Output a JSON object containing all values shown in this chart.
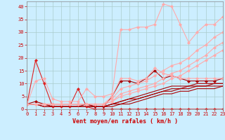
{
  "bg_color": "#cceeff",
  "grid_color": "#aacccc",
  "xlabel": "Vent moyen/en rafales ( km/h )",
  "xlim": [
    0,
    23
  ],
  "ylim": [
    0,
    42
  ],
  "xticks": [
    0,
    1,
    2,
    3,
    4,
    5,
    6,
    7,
    8,
    9,
    10,
    11,
    12,
    13,
    14,
    15,
    16,
    17,
    18,
    19,
    20,
    21,
    22,
    23
  ],
  "yticks": [
    0,
    5,
    10,
    15,
    20,
    25,
    30,
    35,
    40
  ],
  "series": [
    {
      "x": [
        0,
        1,
        2,
        3,
        4,
        5,
        6,
        7,
        8,
        9,
        10,
        11,
        12,
        13,
        14,
        15,
        16,
        17,
        18,
        19,
        20,
        21,
        22,
        23
      ],
      "y": [
        2,
        19,
        10,
        1,
        1,
        1,
        8,
        1,
        0,
        0,
        0,
        0,
        0,
        0,
        0,
        0,
        0,
        0,
        0,
        0,
        0,
        0,
        0,
        0
      ],
      "color": "#dd2222",
      "lw": 0.8,
      "marker": "D",
      "ms": 2
    },
    {
      "x": [
        0,
        1,
        2,
        3,
        4,
        5,
        6,
        7,
        8,
        9,
        10,
        11,
        12,
        13,
        14,
        15,
        16,
        17,
        18,
        19,
        20,
        21,
        22,
        23
      ],
      "y": [
        2,
        3,
        2,
        2,
        2,
        2,
        2,
        2,
        1,
        1,
        5,
        11,
        11,
        10,
        12,
        15,
        12,
        13,
        12,
        11,
        11,
        11,
        11,
        12
      ],
      "color": "#aa0000",
      "lw": 0.8,
      "marker": "D",
      "ms": 2
    },
    {
      "x": [
        0,
        1,
        2,
        3,
        4,
        5,
        6,
        7,
        8,
        9,
        10,
        11,
        12,
        13,
        14,
        15,
        16,
        17,
        18,
        19,
        20,
        21,
        22,
        23
      ],
      "y": [
        2,
        2,
        2,
        1,
        1,
        1,
        1,
        2,
        1,
        1,
        2,
        3,
        4,
        5,
        6,
        7,
        8,
        9,
        9,
        9,
        10,
        10,
        10,
        10
      ],
      "color": "#aa0000",
      "lw": 0.8,
      "marker": null,
      "ms": 0
    },
    {
      "x": [
        0,
        1,
        2,
        3,
        4,
        5,
        6,
        7,
        8,
        9,
        10,
        11,
        12,
        13,
        14,
        15,
        16,
        17,
        18,
        19,
        20,
        21,
        22,
        23
      ],
      "y": [
        2,
        2,
        2,
        1,
        1,
        1,
        1,
        1,
        1,
        1,
        2,
        3,
        4,
        4,
        5,
        6,
        7,
        8,
        8,
        9,
        9,
        9,
        10,
        10
      ],
      "color": "#aa0000",
      "lw": 0.8,
      "marker": null,
      "ms": 0
    },
    {
      "x": [
        0,
        1,
        2,
        3,
        4,
        5,
        6,
        7,
        8,
        9,
        10,
        11,
        12,
        13,
        14,
        15,
        16,
        17,
        18,
        19,
        20,
        21,
        22,
        23
      ],
      "y": [
        2,
        2,
        1,
        1,
        1,
        1,
        1,
        1,
        1,
        1,
        2,
        2,
        3,
        4,
        5,
        6,
        7,
        7,
        8,
        8,
        9,
        9,
        9,
        9
      ],
      "color": "#aa0000",
      "lw": 0.8,
      "marker": null,
      "ms": 0
    },
    {
      "x": [
        0,
        1,
        2,
        3,
        4,
        5,
        6,
        7,
        8,
        9,
        10,
        11,
        12,
        13,
        14,
        15,
        16,
        17,
        18,
        19,
        20,
        21,
        22,
        23
      ],
      "y": [
        2,
        2,
        1,
        1,
        1,
        1,
        1,
        1,
        1,
        1,
        1,
        2,
        2,
        3,
        4,
        5,
        6,
        6,
        7,
        7,
        8,
        8,
        8,
        9
      ],
      "color": "#aa0000",
      "lw": 0.8,
      "marker": null,
      "ms": 0
    },
    {
      "x": [
        0,
        1,
        2,
        3,
        4,
        5,
        6,
        7,
        8,
        9,
        10,
        11,
        12,
        13,
        14,
        15,
        16,
        17,
        18,
        19,
        20,
        21,
        22,
        23
      ],
      "y": [
        2,
        11,
        12,
        4,
        3,
        3,
        3,
        8,
        5,
        5,
        6,
        31,
        31,
        32,
        32,
        33,
        41,
        40,
        33,
        26,
        30,
        33,
        33,
        36
      ],
      "color": "#ffaaaa",
      "lw": 0.8,
      "marker": "D",
      "ms": 2
    },
    {
      "x": [
        0,
        1,
        2,
        3,
        4,
        5,
        6,
        7,
        8,
        9,
        10,
        11,
        12,
        13,
        14,
        15,
        16,
        17,
        18,
        19,
        20,
        21,
        22,
        23
      ],
      "y": [
        2,
        2,
        2,
        2,
        2,
        2,
        2,
        2,
        2,
        2,
        5,
        12,
        12,
        11,
        12,
        16,
        14,
        13,
        12,
        12,
        12,
        12,
        12,
        12
      ],
      "color": "#ffaaaa",
      "lw": 0.8,
      "marker": "D",
      "ms": 2
    },
    {
      "x": [
        0,
        1,
        2,
        3,
        4,
        5,
        6,
        7,
        8,
        9,
        10,
        11,
        12,
        13,
        14,
        15,
        16,
        17,
        18,
        19,
        20,
        21,
        22,
        23
      ],
      "y": [
        2,
        2,
        2,
        2,
        2,
        2,
        2,
        2,
        2,
        2,
        4,
        8,
        9,
        10,
        11,
        13,
        15,
        17,
        18,
        20,
        23,
        25,
        28,
        30
      ],
      "color": "#ffaaaa",
      "lw": 0.8,
      "marker": "D",
      "ms": 2
    },
    {
      "x": [
        0,
        1,
        2,
        3,
        4,
        5,
        6,
        7,
        8,
        9,
        10,
        11,
        12,
        13,
        14,
        15,
        16,
        17,
        18,
        19,
        20,
        21,
        22,
        23
      ],
      "y": [
        2,
        2,
        2,
        2,
        2,
        2,
        2,
        2,
        2,
        2,
        3,
        6,
        7,
        8,
        9,
        10,
        12,
        14,
        15,
        17,
        19,
        21,
        24,
        26
      ],
      "color": "#ffaaaa",
      "lw": 0.8,
      "marker": "D",
      "ms": 2
    },
    {
      "x": [
        0,
        1,
        2,
        3,
        4,
        5,
        6,
        7,
        8,
        9,
        10,
        11,
        12,
        13,
        14,
        15,
        16,
        17,
        18,
        19,
        20,
        21,
        22,
        23
      ],
      "y": [
        2,
        2,
        2,
        2,
        2,
        2,
        2,
        2,
        2,
        2,
        3,
        5,
        6,
        7,
        8,
        9,
        10,
        12,
        13,
        15,
        17,
        19,
        21,
        23
      ],
      "color": "#ffaaaa",
      "lw": 0.8,
      "marker": "D",
      "ms": 2
    }
  ]
}
